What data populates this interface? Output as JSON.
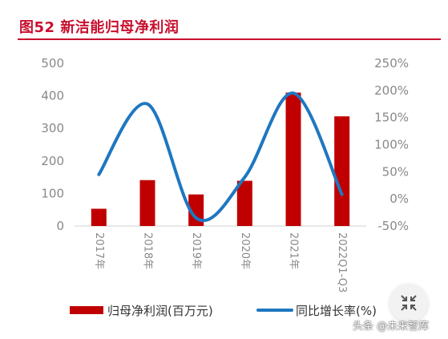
{
  "title": "图52  新洁能归母净利润",
  "chart_data": {
    "type": "bar",
    "categories": [
      "2017年",
      "2018年",
      "2019年",
      "2020年",
      "2021年",
      "2022Q1-Q3"
    ],
    "series": [
      {
        "name": "归母净利润(百万元)",
        "type": "bar",
        "axis": "left",
        "values": [
          53,
          141,
          97,
          139,
          410,
          337
        ],
        "color": "#c00000"
      },
      {
        "name": "同比增长率(%)",
        "type": "line",
        "axis": "right",
        "smooth": true,
        "values": [
          45,
          175,
          -35,
          40,
          195,
          8
        ],
        "color": "#1f77c0"
      }
    ],
    "y_left": {
      "ticks": [
        "0",
        "100",
        "200",
        "300",
        "400",
        "500"
      ],
      "ylim": [
        0,
        500
      ]
    },
    "y_right": {
      "ticks": [
        "-50%",
        "0%",
        "50%",
        "100%",
        "150%",
        "200%",
        "250%"
      ],
      "ylim": [
        -50,
        250
      ]
    },
    "legend_position": "bottom",
    "grid": false
  },
  "watermark": "头条 @未来智库",
  "fab_icon": "collapse-arrows-icon"
}
